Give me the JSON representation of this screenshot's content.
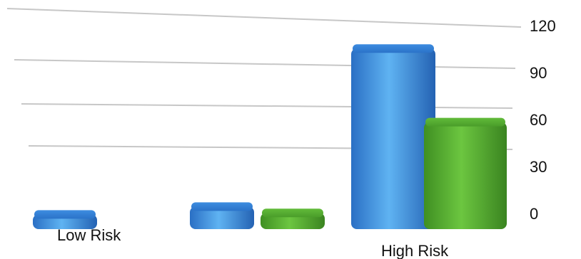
{
  "chart_data": {
    "type": "bar",
    "categories": [
      "Low Risk",
      "",
      "High Risk"
    ],
    "category_labels_shown": [
      "Low Risk",
      "High Risk"
    ],
    "series": [
      {
        "values": [
          3,
          8,
          109
        ],
        "color": "#2f7fd3"
      },
      {
        "values": [
          0,
          4,
          62
        ],
        "color": "#55b032"
      }
    ],
    "title": "",
    "xlabel": "",
    "ylabel": "",
    "ylim": [
      0,
      120
    ],
    "yticks": [
      0,
      30,
      60,
      90,
      120
    ],
    "grid": true,
    "legend": "none",
    "style": "3d-perspective"
  }
}
